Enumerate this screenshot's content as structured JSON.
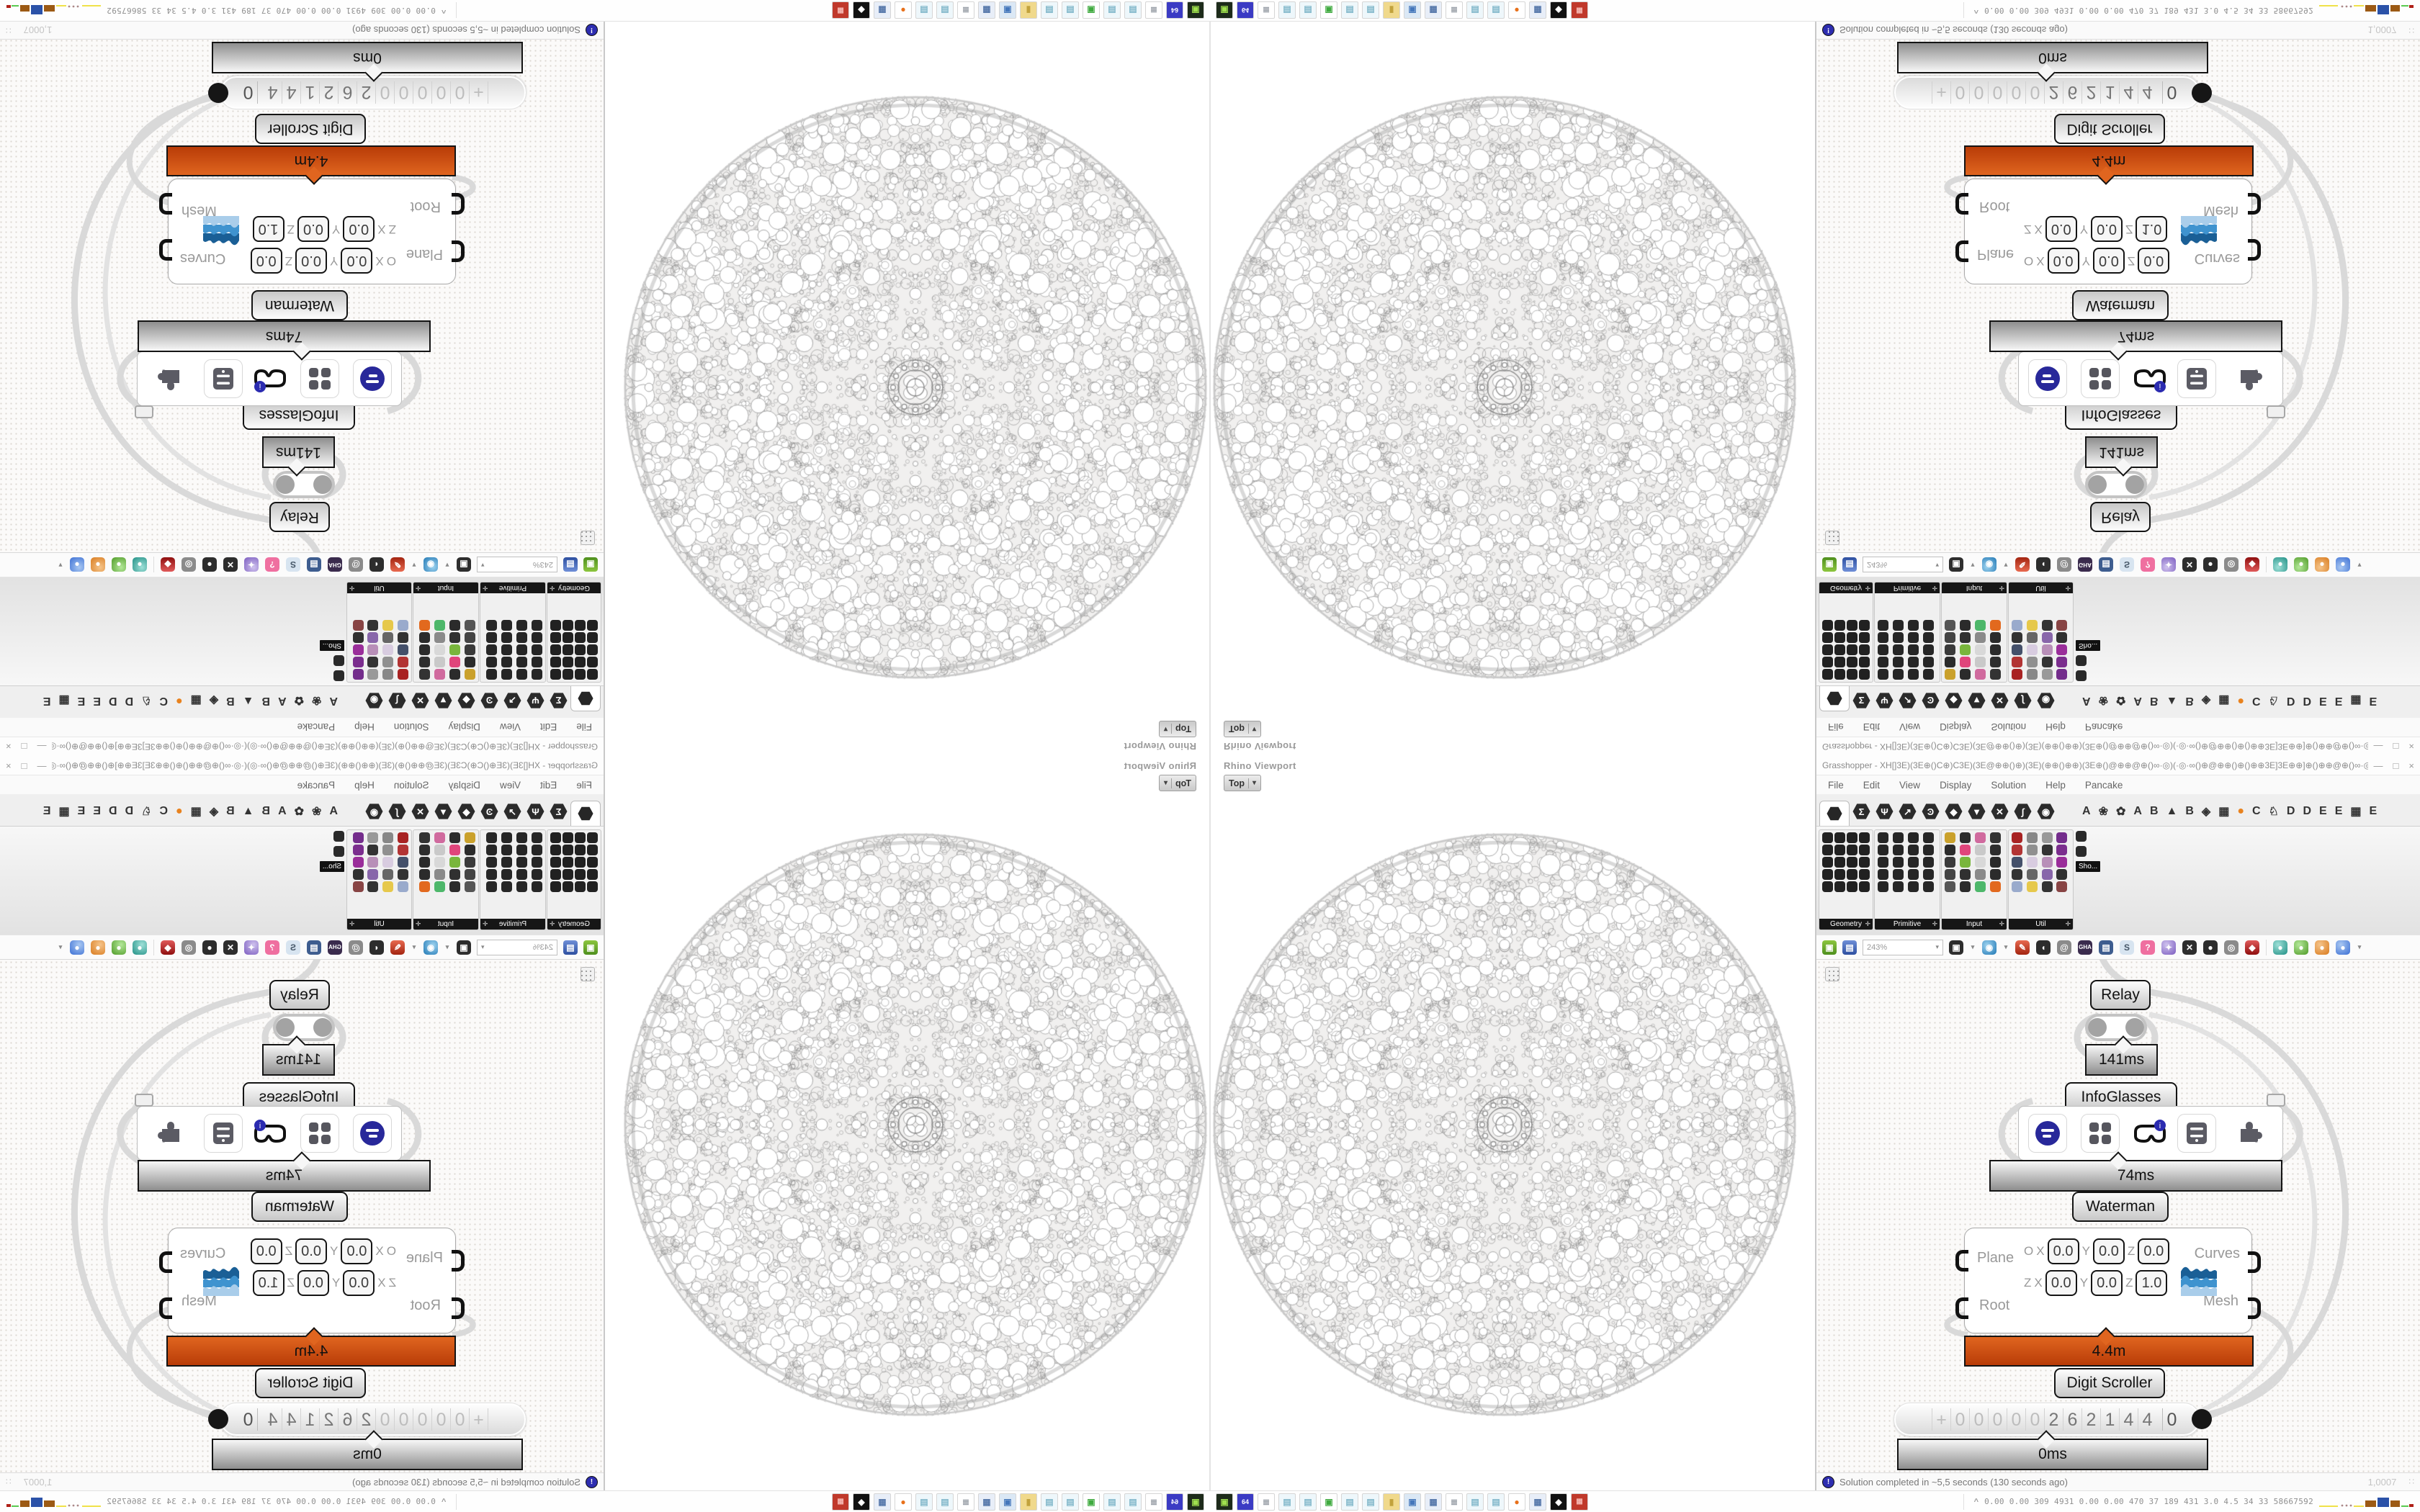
{
  "viewport": {
    "caption": "Rhino Viewport",
    "tab_label": "Top",
    "tab_arrow": "▾"
  },
  "gh": {
    "title": "Grasshopper - XH[]3E)(3E⊕()C⊕)C3E)(3E@⊕⊕()⊕)(3E)(⊕⊕()⊕⊕)(3E⊕()@⊕⊕@⊕()∞·◎)(·◎·∞()⊕@⊕⊕()⊕()⊕⊕3E]3E⊕⊕]⊕()⊕⊕@⊕()∞·◎)(·◎·∞()⊕@⊕⊕@()⊕(3E)(⊕⊕()...",
    "window_buttons": {
      "minimize": "—",
      "maximize": "□",
      "close": "×"
    },
    "menus": [
      "File",
      "Edit",
      "View",
      "Display",
      "Solution",
      "Help",
      "Pancake"
    ],
    "category_tabs": [
      {
        "g": "Σ",
        "n": "tab-maths"
      },
      {
        "g": "Ψ",
        "n": "tab-sets"
      },
      {
        "g": "↗",
        "n": "tab-vector"
      },
      {
        "g": "Ͽ",
        "n": "tab-curve"
      },
      {
        "g": "◆",
        "n": "tab-surface"
      },
      {
        "g": "▼",
        "n": "tab-mesh"
      },
      {
        "g": "✕",
        "n": "tab-intersect"
      },
      {
        "g": "∫",
        "n": "tab-transform"
      },
      {
        "g": "◉",
        "n": "tab-display"
      }
    ],
    "plugin_tabs": [
      {
        "g": "A",
        "n": "tab-addon-a"
      },
      {
        "g": "❀",
        "n": "tab-addon-leaf"
      },
      {
        "g": "✿",
        "n": "tab-addon-gear"
      },
      {
        "g": "A",
        "n": "tab-addon-a2"
      },
      {
        "g": "B",
        "n": "tab-addon-b"
      },
      {
        "g": "▲",
        "n": "tab-addon-mountain"
      },
      {
        "g": "B",
        "n": "tab-addon-b2"
      },
      {
        "g": "◈",
        "n": "tab-addon-shield"
      },
      {
        "g": "▦",
        "n": "tab-addon-grid"
      },
      {
        "g": "●",
        "c": "orange",
        "n": "tab-addon-orange"
      },
      {
        "g": "C",
        "n": "tab-addon-c"
      },
      {
        "g": "♘",
        "n": "tab-addon-knight"
      },
      {
        "g": "D",
        "n": "tab-addon-d"
      },
      {
        "g": "D",
        "n": "tab-addon-d2"
      },
      {
        "g": "E",
        "n": "tab-addon-e"
      },
      {
        "g": "E",
        "n": "tab-addon-e2"
      },
      {
        "g": "▦",
        "n": "tab-addon-grid2"
      },
      {
        "g": "E",
        "n": "tab-addon-e3"
      }
    ],
    "palettes": [
      {
        "name": "Geometry"
      },
      {
        "name": "Primitive"
      },
      {
        "name": "Input"
      },
      {
        "name": "Util"
      }
    ],
    "palette_plus": "✛",
    "palette_tooltip": "Sho...",
    "toolbar": {
      "zoom_value": "243%",
      "zoom_arrow": "▾",
      "open_label": "▣",
      "save_label": "▤",
      "icons": [
        {
          "g": "▣",
          "c": "dk",
          "n": "zoom-extents-icon"
        },
        {
          "g": "▾",
          "c": "mut",
          "n": "dropdown-caret-icon"
        },
        {
          "g": "◉",
          "c": "blue",
          "n": "preview-eye-icon"
        },
        {
          "g": "▾",
          "c": "mut",
          "n": "dropdown-caret-icon"
        },
        {
          "g": "✎",
          "c": "red",
          "n": "sketch-pen-icon"
        },
        {
          "g": "◖",
          "c": "dk",
          "n": "megaphone-icon"
        },
        {
          "g": "@",
          "c": "gray",
          "n": "mail-icon"
        },
        {
          "g": "GHA",
          "c": "gha",
          "n": "gha-package-icon"
        },
        {
          "g": "▤",
          "c": "nav",
          "n": "board-icon"
        },
        {
          "g": "S",
          "c": "mag",
          "n": "search-icon"
        },
        {
          "g": "?",
          "c": "pink",
          "n": "help-box-icon"
        },
        {
          "g": "✦",
          "c": "purp",
          "n": "balloon-icon"
        },
        {
          "g": "✕",
          "c": "dk",
          "n": "dna-icon"
        },
        {
          "g": "●",
          "c": "dk",
          "n": "camera-icon"
        },
        {
          "g": "◎",
          "c": "gray",
          "n": "donut-icon"
        },
        {
          "g": "◆",
          "c": "redgem",
          "n": "gem-icon"
        },
        {
          "g": "",
          "c": "sep",
          "n": "toolbar-separator"
        },
        {
          "g": "●",
          "c": "teal",
          "n": "teal-ball-icon"
        },
        {
          "g": "●",
          "c": "green",
          "n": "green-ball-icon"
        },
        {
          "g": "●",
          "c": "orange",
          "n": "orange-ball-icon"
        },
        {
          "g": "●",
          "c": "blueb",
          "n": "blue-ball-icon"
        },
        {
          "g": "▾",
          "c": "mut",
          "n": "dropdown-caret-icon"
        }
      ]
    },
    "statusbar": {
      "icon": "!",
      "text": "Solution completed in ~5,5 seconds (130 seconds ago)",
      "version": "1,0007",
      "grip": "∷"
    }
  },
  "canvas": {
    "relay_label": "Relay",
    "relay_time": "141ms",
    "infoglasses_label": "InfoGlasses",
    "infoglasses_time": "74ms",
    "waterman_label": "Waterman",
    "waterman_time": "4.4m",
    "scroller_label": "Digit Scroller",
    "scroller_time": "0ms",
    "waterman": {
      "inputs": [
        "Plane",
        "Root"
      ],
      "outputs": [
        "Curves",
        "Mesh"
      ],
      "rows": [
        {
          "p": "O",
          "axes": [
            "X",
            "Y",
            "Z"
          ],
          "vals": [
            "0.0",
            "0.0",
            "0.0"
          ]
        },
        {
          "p": "Z",
          "axes": [
            "X",
            "Y",
            "Z"
          ],
          "vals": [
            "0.0",
            "0.0",
            "1.0"
          ]
        }
      ]
    },
    "scroller_cells": [
      {
        "g": "+",
        "c": "fad",
        "n": "digit-sign"
      },
      {
        "g": "0",
        "c": "fad",
        "n": "digit"
      },
      {
        "g": "0",
        "c": "fad",
        "n": "digit"
      },
      {
        "g": "0",
        "c": "fad",
        "n": "digit"
      },
      {
        "g": "0",
        "c": "fad",
        "n": "digit"
      },
      {
        "g": "0",
        "c": "fad",
        "n": "digit"
      },
      {
        "g": "2",
        "n": "digit"
      },
      {
        "g": "6",
        "n": "digit"
      },
      {
        "g": "2",
        "n": "digit"
      },
      {
        "g": "1",
        "n": "digit"
      },
      {
        "g": "4",
        "n": "digit"
      },
      {
        "g": "4",
        "n": "digit"
      },
      {
        "g": "0",
        "c": "lastd",
        "n": "digit-decimal"
      }
    ]
  },
  "taskbar": {
    "caret": "^",
    "stats": "0.00 0.00  309  4931 0.00 0.00  470   37   189  431   3.0   4.5   34    33  58667592",
    "apps": [
      {
        "g": "▣",
        "c": "a-dkgreen",
        "n": "console-app-icon"
      },
      {
        "g": "64",
        "c": "a-indigo",
        "n": "n64-app-icon"
      },
      {
        "g": "≣",
        "c": "a-gray",
        "n": "script-app-icon"
      },
      {
        "g": "▤",
        "c": "a-cyan",
        "n": "notepad-app-icon"
      },
      {
        "g": "▤",
        "c": "a-cyan",
        "n": "notepad-app-icon"
      },
      {
        "g": "▣",
        "c": "a-green",
        "n": "monitor-app-icon"
      },
      {
        "g": "▤",
        "c": "a-cyan",
        "n": "notepad-app-icon"
      },
      {
        "g": "▤",
        "c": "a-cyan",
        "n": "notepad-app-icon"
      },
      {
        "g": "▮",
        "c": "a-yellow",
        "n": "folder-app-icon"
      },
      {
        "g": "▣",
        "c": "a-blue",
        "n": "computer-app-icon"
      },
      {
        "g": "▦",
        "c": "a-calc",
        "n": "calculator-app-icon"
      },
      {
        "g": "≣",
        "c": "a-gray",
        "n": "script-app-icon"
      },
      {
        "g": "▤",
        "c": "a-cyan",
        "n": "notepad-app-icon"
      },
      {
        "g": "▤",
        "c": "a-cyan",
        "n": "notepad-app-icon"
      },
      {
        "g": "●",
        "c": "a-ff",
        "n": "browser-app-icon"
      },
      {
        "g": "▦",
        "c": "a-calc",
        "n": "calculator-app-icon"
      },
      {
        "g": "◆",
        "c": "a-black",
        "n": "art-app-icon"
      },
      {
        "g": "▦",
        "c": "a-red",
        "n": "cards-app-icon"
      }
    ]
  }
}
